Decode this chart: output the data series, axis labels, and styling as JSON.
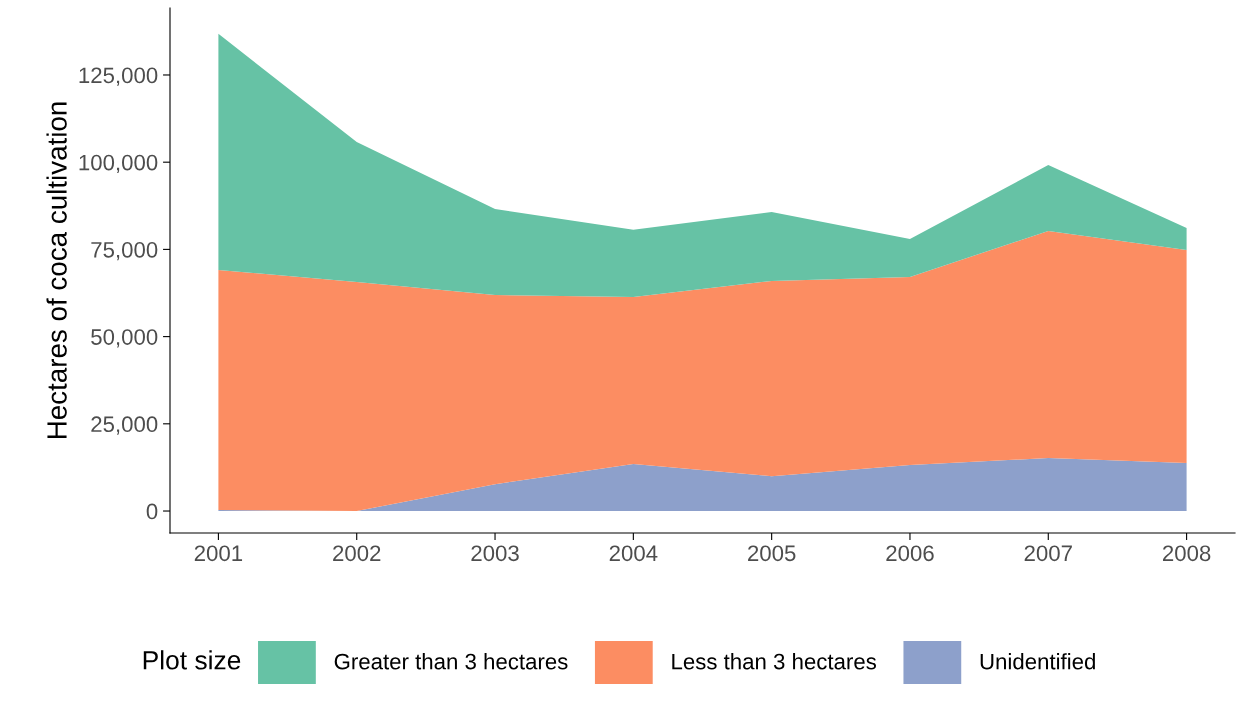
{
  "chart_data": {
    "type": "area",
    "stacked": true,
    "ylabel": "Hectares of coca cultivation",
    "legend_title": "Plot size",
    "legend": "bottom",
    "grid": false,
    "x": [
      2001,
      2002,
      2003,
      2004,
      2005,
      2006,
      2007,
      2008
    ],
    "xlim": [
      2000.65,
      2008.35
    ],
    "xticks": [
      2001,
      2002,
      2003,
      2004,
      2005,
      2006,
      2007,
      2008
    ],
    "ylim": [
      -6300,
      144200
    ],
    "yticks": [
      {
        "value": 0,
        "label": "0"
      },
      {
        "value": 25000,
        "label": "25,000"
      },
      {
        "value": 50000,
        "label": "50,000"
      },
      {
        "value": 75000,
        "label": "75,000"
      },
      {
        "value": 100000,
        "label": "100,000"
      },
      {
        "value": 125000,
        "label": "125,000"
      }
    ],
    "series": [
      {
        "name": "Unidentified",
        "color": "#8da0cb",
        "values": [
          300,
          0,
          7700,
          13500,
          10000,
          13200,
          15200,
          13800
        ]
      },
      {
        "name": "Less than 3 hectares",
        "color": "#fc8d62",
        "values": [
          68800,
          65650,
          54200,
          47850,
          55950,
          53900,
          65100,
          61000
        ]
      },
      {
        "name": "Greater than 3 hectares",
        "color": "#66c2a5",
        "values": [
          67700,
          40150,
          24700,
          19250,
          19750,
          10900,
          18900,
          6300
        ]
      }
    ]
  }
}
